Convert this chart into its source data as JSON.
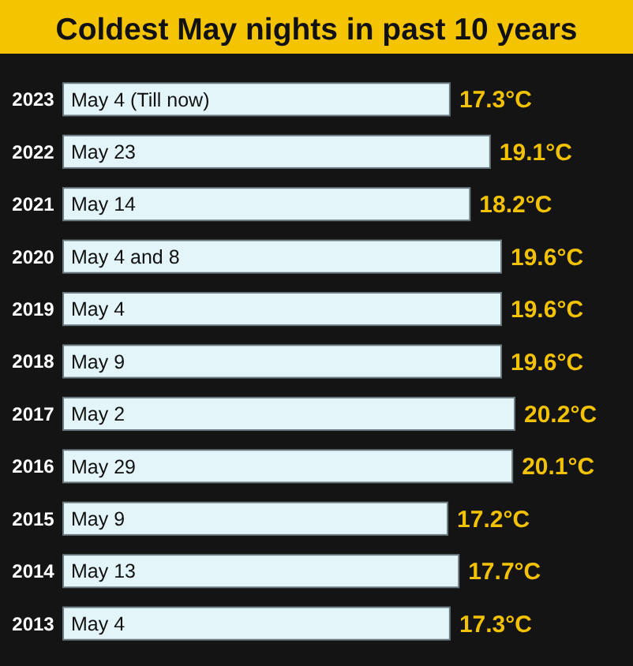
{
  "chart_data": {
    "type": "bar",
    "orientation": "horizontal",
    "relative": false,
    "title": "Coldest May nights in past 10 years",
    "categories": [
      "2023",
      "2022",
      "2021",
      "2020",
      "2019",
      "2018",
      "2017",
      "2016",
      "2015",
      "2014",
      "2013"
    ],
    "values": [
      17.3,
      19.1,
      18.2,
      19.6,
      19.6,
      19.6,
      20.2,
      20.1,
      17.2,
      17.7,
      17.3
    ],
    "value_labels": [
      "17.3°C",
      "19.1°C",
      "18.2°C",
      "19.6°C",
      "19.6°C",
      "19.6°C",
      "20.2°C",
      "20.1°C",
      "17.2°C",
      "17.7°C",
      "17.3°C"
    ],
    "color": "#e3f5f8",
    "annotations": [
      {
        "text": "May 4 (Till now)",
        "y": "2023"
      },
      {
        "text": "May 23",
        "y": "2022"
      },
      {
        "text": "May 14",
        "y": "2021"
      },
      {
        "text": "May 4 and 8",
        "y": "2020"
      },
      {
        "text": "May 4",
        "y": "2019"
      },
      {
        "text": "May 9",
        "y": "2018"
      },
      {
        "text": "May 2",
        "y": "2017"
      },
      {
        "text": "May 29",
        "y": "2016"
      },
      {
        "text": "May 9",
        "y": "2015"
      },
      {
        "text": "May 13",
        "y": "2014"
      },
      {
        "text": "May 4",
        "y": "2013"
      }
    ]
  }
}
